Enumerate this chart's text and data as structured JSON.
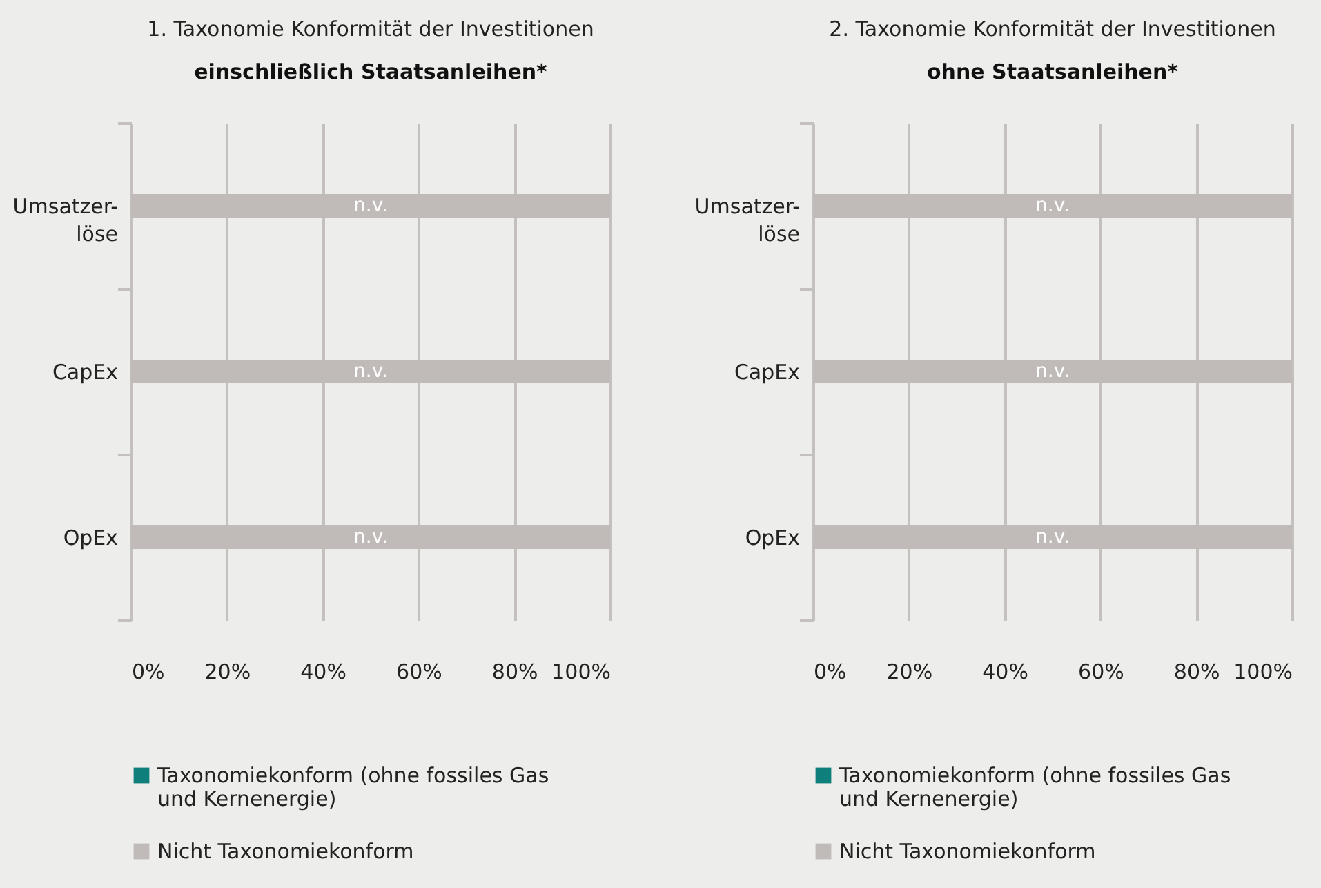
{
  "chart_data": [
    {
      "type": "bar",
      "title": "1. Taxonomie Konformität der Investitionen",
      "subtitle": "einschließlich Staatsanleihen*",
      "orientation": "horizontal",
      "categories": [
        "Umsatzer-\nlöse",
        "CapEx",
        "OpEx"
      ],
      "series": [
        {
          "name": "Taxonomiekonform (ohne fossiles Gas und Kernenergie)",
          "color": "#0f7f7c",
          "values": [
            0,
            0,
            0
          ]
        },
        {
          "name": "Nicht Taxonomiekonform",
          "color": "#c0bbb8",
          "values": [
            100,
            100,
            100
          ],
          "value_labels": [
            "n.v.",
            "n.v.",
            "n.v."
          ]
        }
      ],
      "xlim": [
        0,
        100
      ],
      "xticks": [
        {
          "value": 0,
          "label": "0%"
        },
        {
          "value": 20,
          "label": "20%"
        },
        {
          "value": 40,
          "label": "40%"
        },
        {
          "value": 60,
          "label": "60%"
        },
        {
          "value": 80,
          "label": "80%"
        },
        {
          "value": 100,
          "label": "100%"
        }
      ],
      "grid": "x",
      "legend": "bottom"
    },
    {
      "type": "bar",
      "title": "2. Taxonomie Konformität der Investitionen",
      "subtitle": "ohne Staatsanleihen*",
      "orientation": "horizontal",
      "categories": [
        "Umsatzer-\nlöse",
        "CapEx",
        "OpEx"
      ],
      "series": [
        {
          "name": "Taxonomiekonform (ohne fossiles Gas und Kernenergie)",
          "color": "#0f7f7c",
          "values": [
            0,
            0,
            0
          ]
        },
        {
          "name": "Nicht Taxonomiekonform",
          "color": "#c0bbb8",
          "values": [
            100,
            100,
            100
          ],
          "value_labels": [
            "n.v.",
            "n.v.",
            "n.v."
          ]
        }
      ],
      "xlim": [
        0,
        100
      ],
      "xticks": [
        {
          "value": 0,
          "label": "0%"
        },
        {
          "value": 20,
          "label": "20%"
        },
        {
          "value": 40,
          "label": "40%"
        },
        {
          "value": 60,
          "label": "60%"
        },
        {
          "value": 80,
          "label": "80%"
        },
        {
          "value": 100,
          "label": "100%"
        }
      ],
      "grid": "x",
      "legend": "bottom"
    }
  ]
}
